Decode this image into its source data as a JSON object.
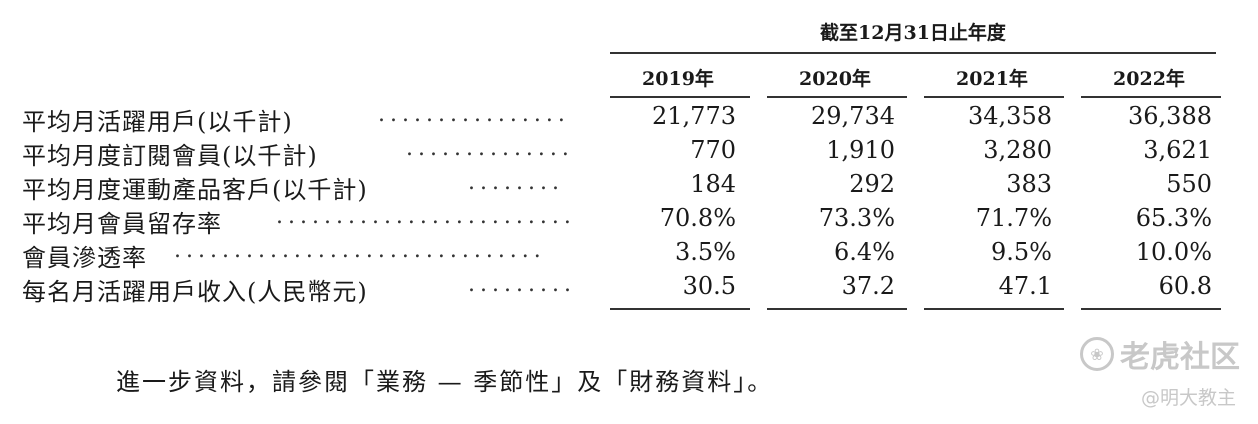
{
  "table": {
    "period_header": "截至12月31日止年度",
    "years": [
      "2019年",
      "2020年",
      "2021年",
      "2022年"
    ],
    "rows": [
      {
        "label": "平均月活躍用戶(以千計)",
        "dots": "................",
        "values": [
          "21,773",
          "29,734",
          "34,358",
          "36,388"
        ]
      },
      {
        "label": "平均月度訂閱會員(以千計)",
        "dots": "..............",
        "values": [
          "770",
          "1,910",
          "3,280",
          "3,621"
        ]
      },
      {
        "label": "平均月度運動產品客戶(以千計)",
        "dots": "........",
        "values": [
          "184",
          "292",
          "383",
          "550"
        ]
      },
      {
        "label": "平均月會員留存率",
        "dots": ".........................",
        "values": [
          "70.8%",
          "73.3%",
          "71.7%",
          "65.3%"
        ]
      },
      {
        "label": "會員滲透率",
        "dots": "...............................",
        "values": [
          "3.5%",
          "6.4%",
          "9.5%",
          "10.0%"
        ]
      },
      {
        "label": "每名月活躍用戶收入(人民幣元)",
        "dots": ".........",
        "values": [
          "30.5",
          "37.2",
          "47.1",
          "60.8"
        ]
      }
    ]
  },
  "note": "進一步資料，請參閱「業務 — 季節性」及「財務資料」。",
  "watermark": {
    "logo_icon": "paw-logo-icon",
    "site": "老虎社区",
    "credit": "@明大教主"
  }
}
